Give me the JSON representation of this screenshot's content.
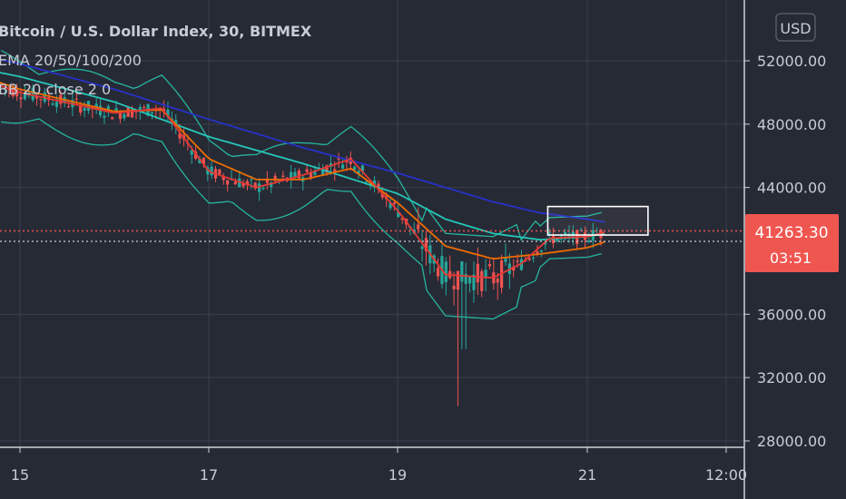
{
  "header": {
    "symbol_title": "Bitcoin / U.S. Dollar Index, 30, BITMEX",
    "indicator_ema": "EMA 20/50/100/200",
    "indicator_bb": "BB 20 close 2 0",
    "currency_button": "USD"
  },
  "price_badge": {
    "price": "41263.30",
    "countdown": "03:51"
  },
  "colors": {
    "background": "#262a35",
    "up_candle": "#26a69a",
    "down_candle": "#ef5350",
    "ema20": "#e53935",
    "ema50": "#ef6c00",
    "ema100": "#26c6b8",
    "ema200": "#2731c8",
    "bollinger": "#26b59e",
    "badge": "#f05650"
  },
  "chart_data": {
    "type": "line",
    "title": "Bitcoin / U.S. Dollar Index, 30, BITMEX",
    "x_ticks": [
      "15",
      "17",
      "19",
      "21",
      "12:00"
    ],
    "y_ticks": [
      "52000.00",
      "48000.00",
      "44000.00",
      "36000.00",
      "32000.00",
      "28000.00"
    ],
    "ylim": [
      28000,
      54000
    ],
    "last_price": 41263.3,
    "series": [
      {
        "name": "EMA 200",
        "x": [
          14.5,
          15,
          16,
          17,
          18,
          19,
          20,
          20.5,
          21,
          21.2
        ],
        "values": [
          52500,
          51800,
          50200,
          48300,
          46500,
          44900,
          43100,
          42400,
          42000,
          41800
        ]
      },
      {
        "name": "EMA 100",
        "x": [
          14.5,
          15,
          16,
          17,
          18,
          19,
          19.5,
          20,
          20.5,
          21,
          21.2
        ],
        "values": [
          51600,
          51000,
          49400,
          47200,
          45500,
          43600,
          42000,
          41100,
          40700,
          40900,
          41100
        ]
      },
      {
        "name": "EMA 50",
        "x": [
          14.5,
          15,
          16,
          16.5,
          17,
          17.5,
          18,
          18.5,
          19,
          19.5,
          20,
          20.5,
          21,
          21.2
        ],
        "values": [
          51200,
          50200,
          48800,
          48900,
          45800,
          44500,
          44500,
          45200,
          43000,
          40300,
          39500,
          39800,
          40200,
          40600
        ]
      },
      {
        "name": "EMA 20",
        "x": [
          14.5,
          15,
          16,
          16.5,
          17,
          17.5,
          18,
          18.5,
          19,
          19.5,
          20,
          20.3,
          20.6,
          21,
          21.2
        ],
        "values": [
          51000,
          50000,
          48700,
          49000,
          45000,
          44000,
          44800,
          45800,
          42500,
          38500,
          38300,
          39200,
          40800,
          40900,
          41200
        ]
      }
    ]
  }
}
